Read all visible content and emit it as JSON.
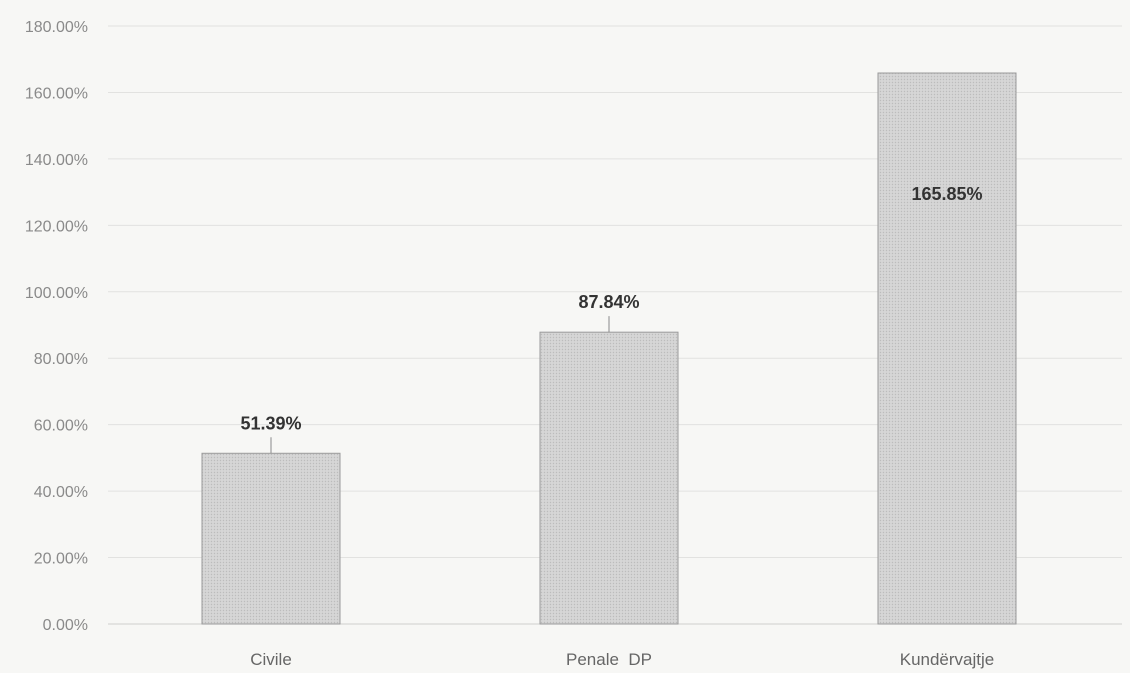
{
  "chart_data": {
    "type": "bar",
    "title": "",
    "xlabel": "",
    "ylabel": "",
    "categories": [
      "Civile",
      "Penale  DP",
      "Kundërvajtje"
    ],
    "values": [
      51.39,
      87.84,
      165.85
    ],
    "data_labels": [
      "51.39%",
      "87.84%",
      "165.85%"
    ],
    "ylim": [
      0,
      180
    ],
    "yticks": [
      0,
      20,
      40,
      60,
      80,
      100,
      120,
      140,
      160,
      180
    ],
    "ytick_labels": [
      "0.00%",
      "20.00%",
      "40.00%",
      "60.00%",
      "80.00%",
      "100.00%",
      "120.00%",
      "140.00%",
      "160.00%",
      "180.00%"
    ],
    "grid": true,
    "legend": "none",
    "colors": {
      "bar_fill": "#d3d3d3",
      "bar_stroke": "#9a9a9a",
      "grid": "#e2e2e0"
    }
  }
}
